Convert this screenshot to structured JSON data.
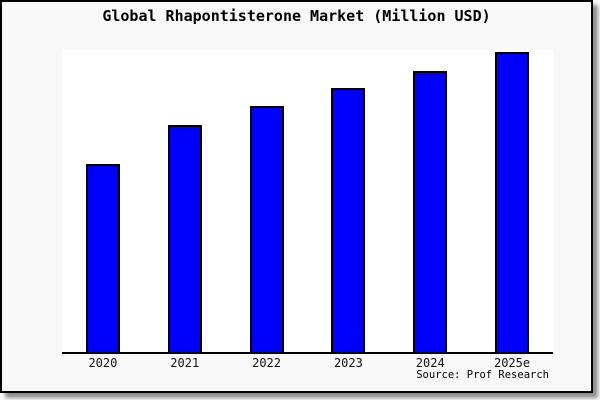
{
  "frame": {
    "background": "#f8f8f8",
    "border_color": "#000000",
    "plot_background": "#ffffff"
  },
  "chart": {
    "title": "Global Rhapontisterone Market (Million USD)",
    "source": "Source: Prof Research",
    "bar_color": "#0000ff",
    "bar_border_color": "#000000"
  },
  "chart_data": {
    "type": "bar",
    "title": "Global Rhapontisterone Market (Million USD)",
    "categories": [
      "2020",
      "2021",
      "2022",
      "2023",
      "2024",
      "2025e"
    ],
    "values": [
      100,
      121,
      131,
      141,
      150,
      160
    ],
    "values_note": "no y-axis ticks shown; values are relative units estimated from bar heights with 2020 = 100",
    "xlabel": "",
    "ylabel": "",
    "ylim": [
      0,
      161
    ],
    "grid": false,
    "legend": false,
    "annotations": [
      "Source: Prof Research"
    ]
  }
}
